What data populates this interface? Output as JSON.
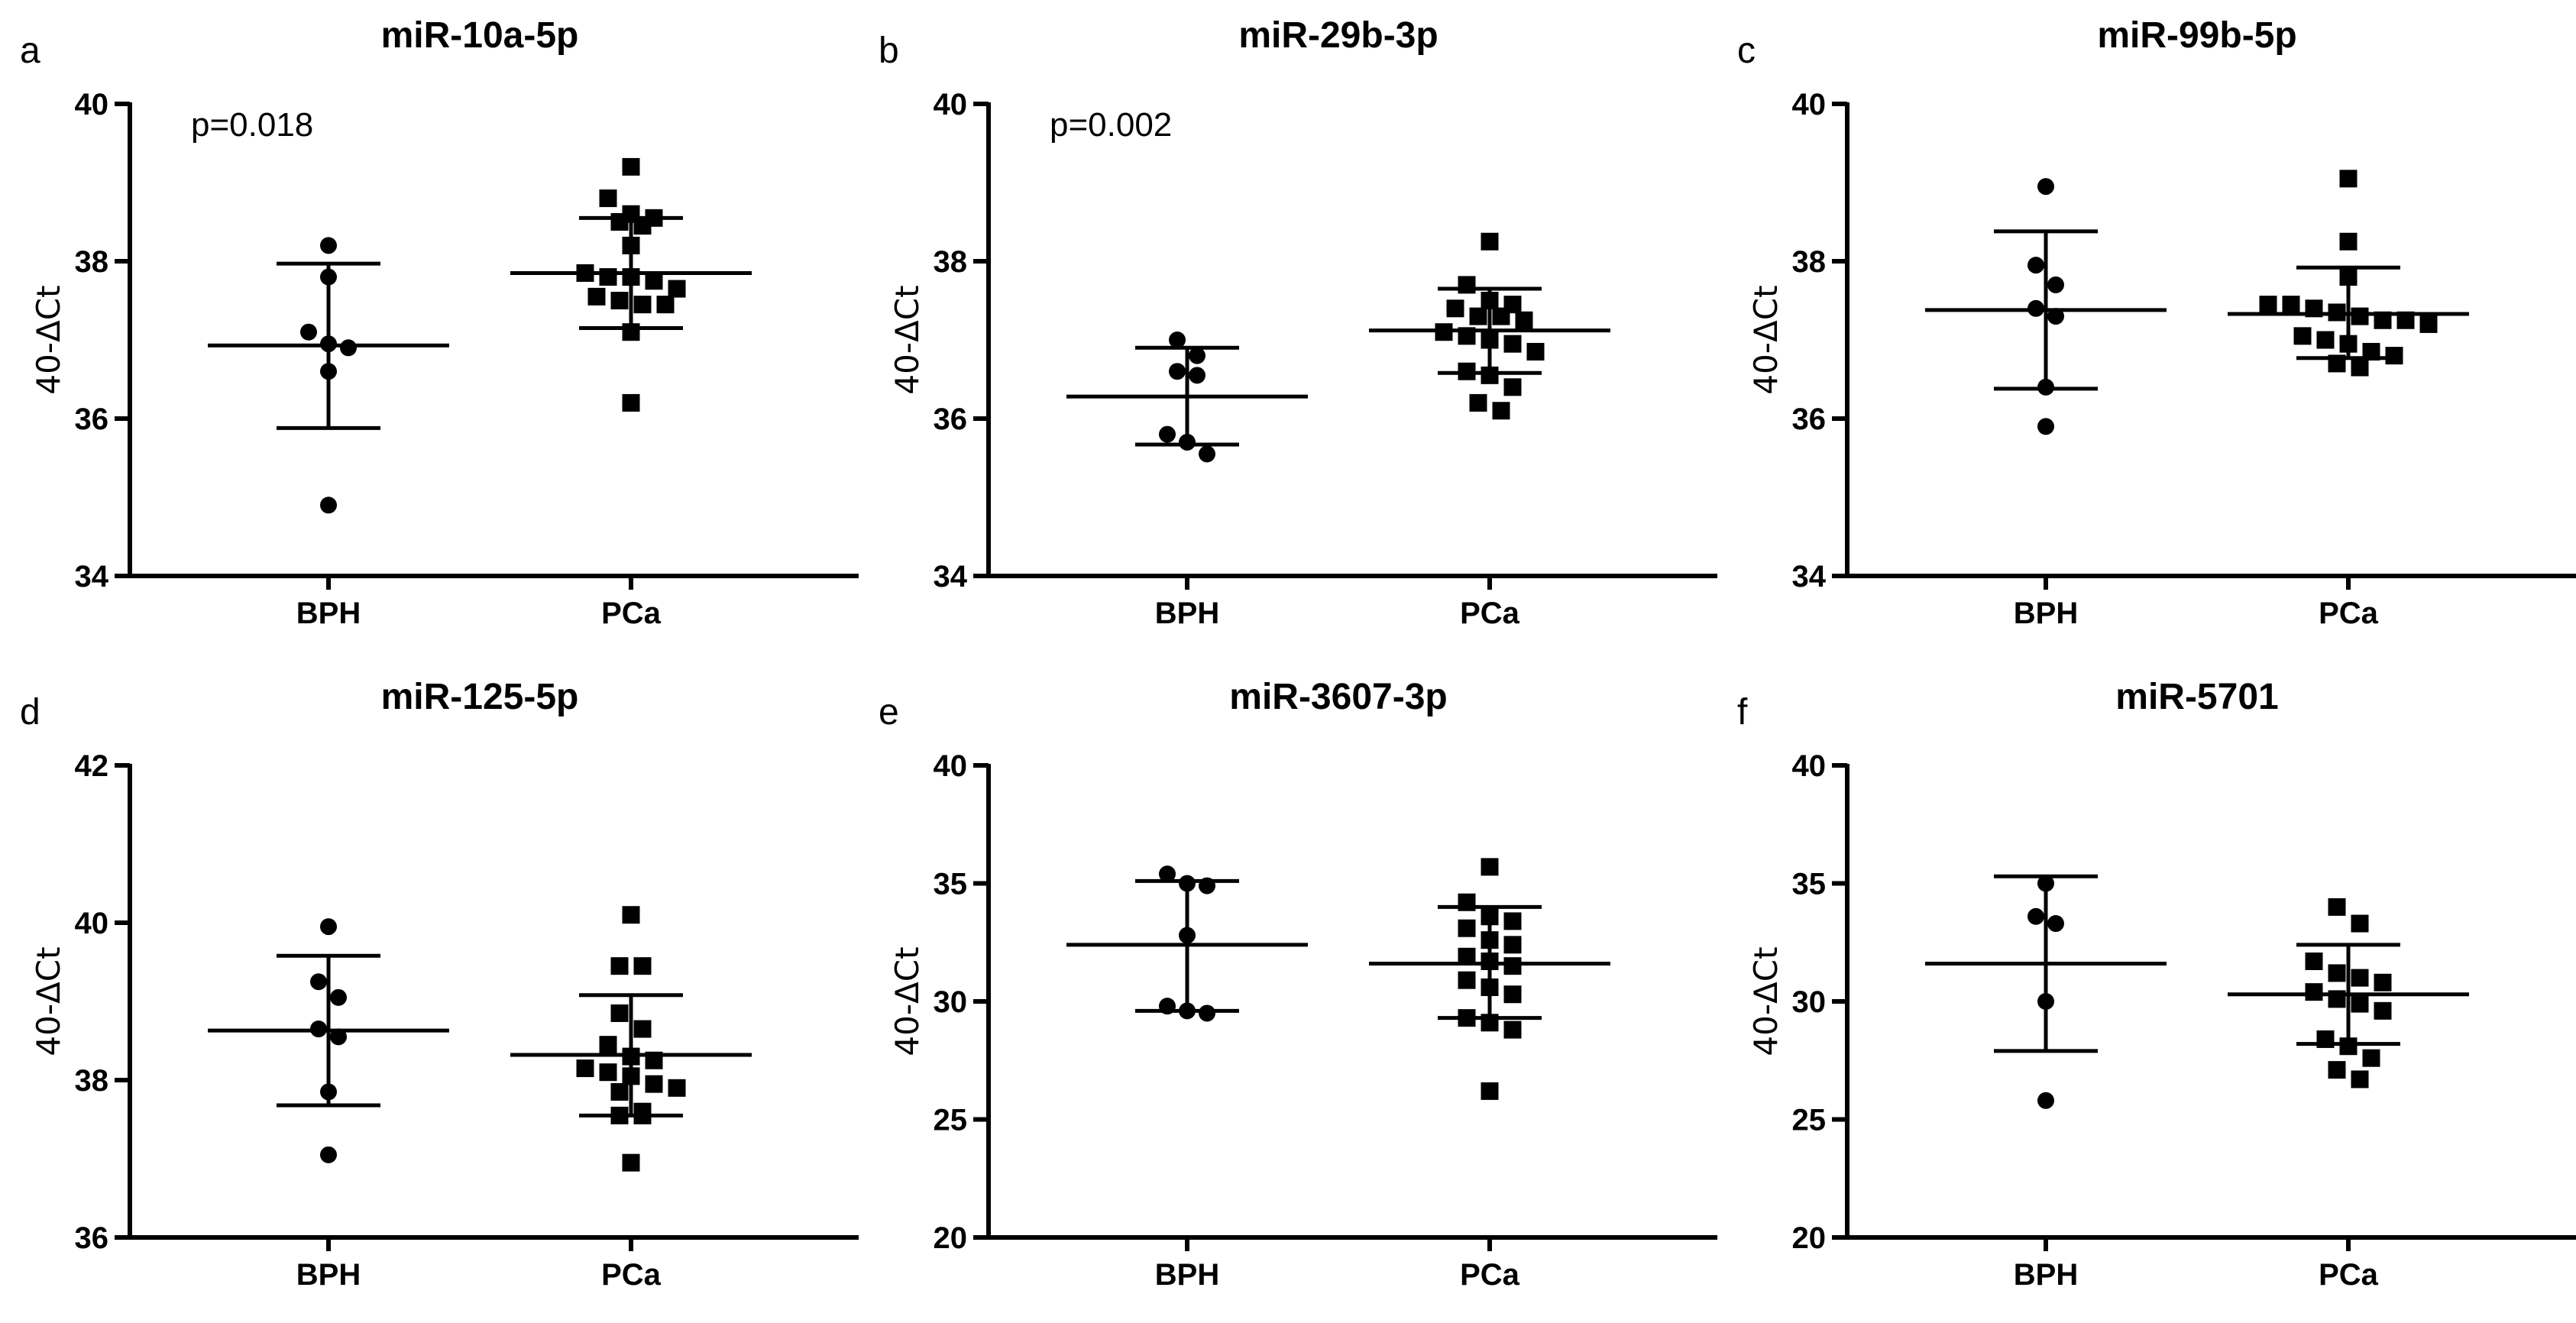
{
  "chart_data": [
    {
      "type": "scatter",
      "panel_label": "a",
      "title": "miR-10a-5p",
      "ylabel": "40-ΔCt",
      "ylim": [
        34,
        40
      ],
      "yticks": [
        34,
        36,
        38,
        40
      ],
      "categories": [
        "BPH",
        "PCa"
      ],
      "p_value": "p=0.018",
      "series": [
        {
          "name": "BPH",
          "marker": "circle",
          "mean": 36.93,
          "sd_low": 35.88,
          "sd_high": 37.97,
          "points": [
            38.2,
            37.8,
            37.1,
            36.9,
            36.95,
            36.6,
            34.9
          ]
        },
        {
          "name": "PCa",
          "marker": "square",
          "mean": 37.85,
          "sd_low": 37.15,
          "sd_high": 38.55,
          "points": [
            39.2,
            38.8,
            38.6,
            38.55,
            38.5,
            38.45,
            38.2,
            37.85,
            37.8,
            37.8,
            37.75,
            37.65,
            37.55,
            37.5,
            37.45,
            37.45,
            37.1,
            36.2
          ]
        }
      ]
    },
    {
      "type": "scatter",
      "panel_label": "b",
      "title": "miR-29b-3p",
      "ylabel": "40-ΔCt",
      "ylim": [
        34,
        40
      ],
      "yticks": [
        34,
        36,
        38,
        40
      ],
      "categories": [
        "BPH",
        "PCa"
      ],
      "p_value": "p=0.002",
      "series": [
        {
          "name": "BPH",
          "marker": "circle",
          "mean": 36.28,
          "sd_low": 35.67,
          "sd_high": 36.9,
          "points": [
            37.0,
            36.8,
            36.6,
            36.55,
            35.8,
            35.7,
            35.55
          ]
        },
        {
          "name": "PCa",
          "marker": "square",
          "mean": 37.12,
          "sd_low": 36.58,
          "sd_high": 37.65,
          "points": [
            38.25,
            37.7,
            37.5,
            37.45,
            37.4,
            37.3,
            37.3,
            37.25,
            37.1,
            37.05,
            37.0,
            36.95,
            36.85,
            36.6,
            36.55,
            36.4,
            36.2,
            36.1
          ]
        }
      ]
    },
    {
      "type": "scatter",
      "panel_label": "c",
      "title": "miR-99b-5p",
      "ylabel": "40-ΔCt",
      "ylim": [
        34,
        40
      ],
      "yticks": [
        34,
        36,
        38,
        40
      ],
      "categories": [
        "BPH",
        "PCa"
      ],
      "p_value": "",
      "series": [
        {
          "name": "BPH",
          "marker": "circle",
          "mean": 37.38,
          "sd_low": 36.38,
          "sd_high": 38.38,
          "points": [
            38.95,
            37.95,
            37.7,
            37.4,
            37.3,
            36.4,
            35.9
          ]
        },
        {
          "name": "PCa",
          "marker": "square",
          "mean": 37.33,
          "sd_low": 36.77,
          "sd_high": 37.92,
          "points": [
            39.05,
            38.25,
            37.8,
            37.45,
            37.45,
            37.4,
            37.35,
            37.3,
            37.25,
            37.25,
            37.2,
            37.05,
            37.0,
            36.95,
            36.85,
            36.8,
            36.7,
            36.65
          ]
        }
      ]
    },
    {
      "type": "scatter",
      "panel_label": "d",
      "title": "miR-125-5p",
      "ylabel": "40-ΔCt",
      "ylim": [
        36,
        42
      ],
      "yticks": [
        36,
        38,
        40,
        42
      ],
      "categories": [
        "BPH",
        "PCa"
      ],
      "p_value": "",
      "series": [
        {
          "name": "BPH",
          "marker": "circle",
          "mean": 38.63,
          "sd_low": 37.68,
          "sd_high": 39.58,
          "points": [
            39.95,
            39.25,
            39.05,
            38.65,
            38.55,
            37.85,
            37.05
          ]
        },
        {
          "name": "PCa",
          "marker": "square",
          "mean": 38.32,
          "sd_low": 37.55,
          "sd_high": 39.08,
          "points": [
            40.1,
            39.45,
            39.45,
            38.85,
            38.65,
            38.45,
            38.3,
            38.25,
            38.15,
            38.1,
            38.05,
            37.95,
            37.9,
            37.85,
            37.6,
            37.55,
            37.55,
            36.95
          ]
        }
      ]
    },
    {
      "type": "scatter",
      "panel_label": "e",
      "title": "miR-3607-3p",
      "ylabel": "40-ΔCt",
      "ylim": [
        20,
        40
      ],
      "yticks": [
        20,
        25,
        30,
        35,
        40
      ],
      "categories": [
        "BPH",
        "PCa"
      ],
      "p_value": "",
      "series": [
        {
          "name": "BPH",
          "marker": "circle",
          "mean": 32.4,
          "sd_low": 29.6,
          "sd_high": 35.1,
          "points": [
            35.4,
            35.0,
            34.9,
            32.8,
            29.8,
            29.6,
            29.5
          ]
        },
        {
          "name": "PCa",
          "marker": "square",
          "mean": 31.6,
          "sd_low": 29.3,
          "sd_high": 34.0,
          "points": [
            35.7,
            34.2,
            33.6,
            33.4,
            33.1,
            32.6,
            32.4,
            31.9,
            31.7,
            31.5,
            30.9,
            30.6,
            30.3,
            29.3,
            29.1,
            28.8,
            26.2
          ]
        }
      ]
    },
    {
      "type": "scatter",
      "panel_label": "f",
      "title": "miR-5701",
      "ylabel": "40-ΔCt",
      "ylim": [
        20,
        40
      ],
      "yticks": [
        20,
        25,
        30,
        35,
        40
      ],
      "categories": [
        "BPH",
        "PCa"
      ],
      "p_value": "",
      "series": [
        {
          "name": "BPH",
          "marker": "circle",
          "mean": 31.6,
          "sd_low": 27.9,
          "sd_high": 35.3,
          "points": [
            35.0,
            33.6,
            33.3,
            30.0,
            25.8
          ]
        },
        {
          "name": "PCa",
          "marker": "square",
          "mean": 30.3,
          "sd_low": 28.2,
          "sd_high": 32.4,
          "points": [
            34.0,
            33.3,
            31.7,
            31.2,
            31.0,
            30.8,
            30.4,
            30.1,
            29.9,
            29.6,
            28.4,
            28.1,
            27.6,
            27.1,
            26.7
          ]
        }
      ]
    }
  ]
}
